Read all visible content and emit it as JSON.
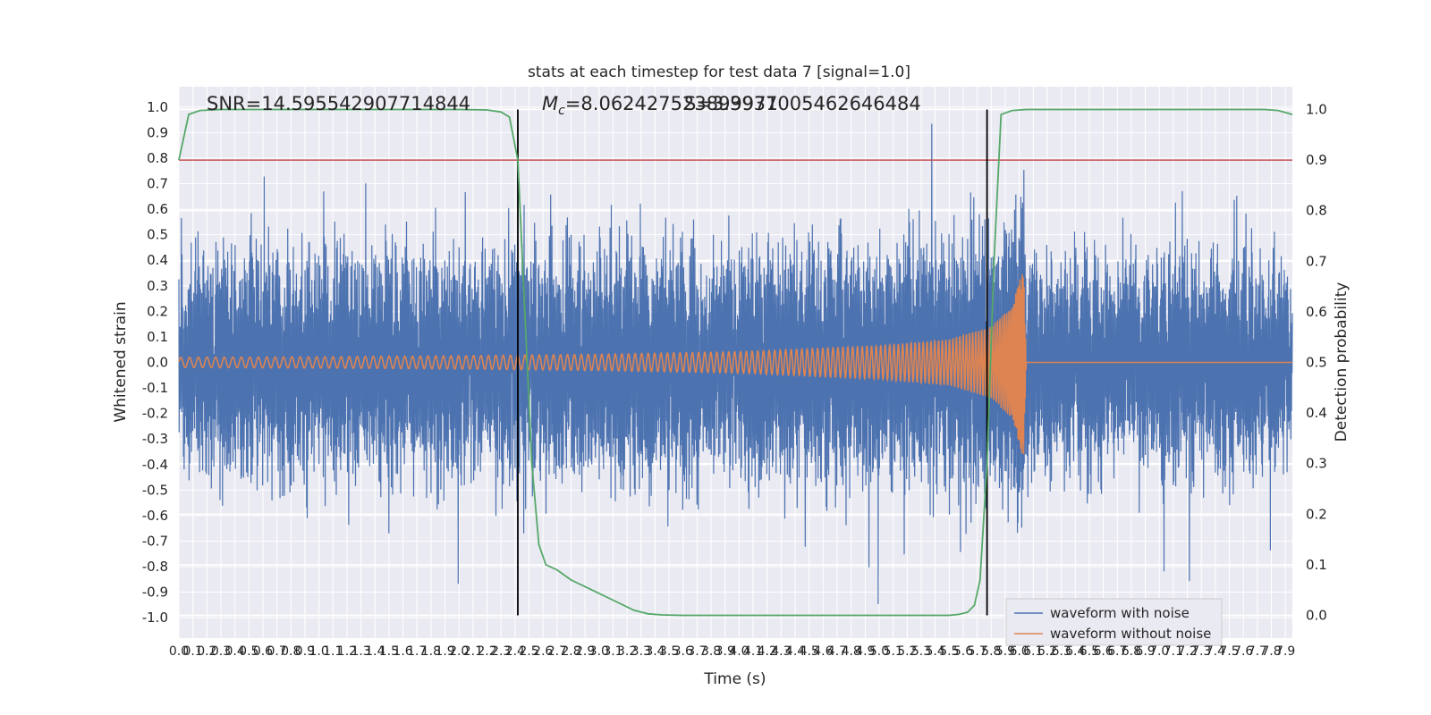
{
  "chart_data": {
    "type": "line",
    "title": "stats at each timestep for test data 7 [signal=1.0]",
    "xlabel": "Time (s)",
    "ylabel": "Whitened strain",
    "y2label": "Detection probability",
    "xlim": [
      0.0,
      7.95
    ],
    "ylim": [
      -1.08,
      1.08
    ],
    "y2lim": [
      -0.045,
      1.045
    ],
    "grid": true,
    "x_tick_step": 0.1,
    "y_ticks": [
      -1.0,
      -0.9,
      -0.8,
      -0.7,
      -0.6,
      -0.5,
      -0.4,
      -0.3,
      -0.2,
      -0.1,
      0.0,
      0.1,
      0.2,
      0.3,
      0.4,
      0.5,
      0.6,
      0.7,
      0.8,
      0.9,
      1.0
    ],
    "y2_ticks": [
      0.0,
      0.1,
      0.2,
      0.3,
      0.4,
      0.5,
      0.6,
      0.7,
      0.8,
      0.9,
      1.0
    ],
    "annotations": {
      "snr": "SNR=14.595542907714844",
      "mc_symbol": "M",
      "mc_sub": "c",
      "mc_value": "=8.062427523899971",
      "s_value": "S=3.3937005462646484"
    },
    "threshold_y2": 0.9,
    "vlines_x": [
      2.42,
      5.77
    ],
    "legend": {
      "position": "bottom-right",
      "entries": [
        "waveform with noise",
        "waveform without noise"
      ]
    },
    "series": [
      {
        "name": "waveform with noise",
        "axis": "left",
        "color": "#4c72b0",
        "description_values": {
          "noise_amplitude_typical": 0.33,
          "max": 1.0,
          "min": -0.97
        }
      },
      {
        "name": "waveform without noise",
        "axis": "left",
        "color": "#dd8452",
        "envelope": {
          "x": [
            0.0,
            1.0,
            2.0,
            3.0,
            4.0,
            5.0,
            5.5,
            5.8,
            5.95,
            6.03,
            6.05
          ],
          "amp": [
            0.02,
            0.022,
            0.026,
            0.032,
            0.042,
            0.065,
            0.09,
            0.14,
            0.22,
            0.38,
            0.0
          ]
        },
        "merger_x": 6.04
      },
      {
        "name": "detection probability",
        "axis": "right",
        "color": "#55a868",
        "x": [
          0.0,
          0.07,
          0.15,
          0.3,
          0.6,
          1.0,
          1.5,
          2.0,
          2.2,
          2.3,
          2.36,
          2.42,
          2.47,
          2.52,
          2.57,
          2.62,
          2.7,
          2.8,
          2.95,
          3.1,
          3.25,
          3.35,
          3.45,
          3.6,
          4.0,
          4.5,
          5.0,
          5.4,
          5.5,
          5.57,
          5.63,
          5.68,
          5.72,
          5.77,
          5.82,
          5.87,
          5.95,
          6.05,
          6.5,
          7.0,
          7.5,
          7.75,
          7.85,
          7.95
        ],
        "y": [
          0.9,
          0.99,
          0.998,
          1.0,
          1.0,
          1.0,
          1.0,
          1.0,
          0.999,
          0.995,
          0.985,
          0.9,
          0.6,
          0.3,
          0.14,
          0.1,
          0.09,
          0.07,
          0.05,
          0.03,
          0.01,
          0.003,
          0.001,
          0.0,
          0.0,
          0.0,
          0.0,
          0.0,
          0.0,
          0.002,
          0.006,
          0.02,
          0.07,
          0.3,
          0.7,
          0.99,
          0.998,
          1.0,
          1.0,
          1.0,
          1.0,
          1.0,
          0.998,
          0.99
        ]
      }
    ]
  }
}
